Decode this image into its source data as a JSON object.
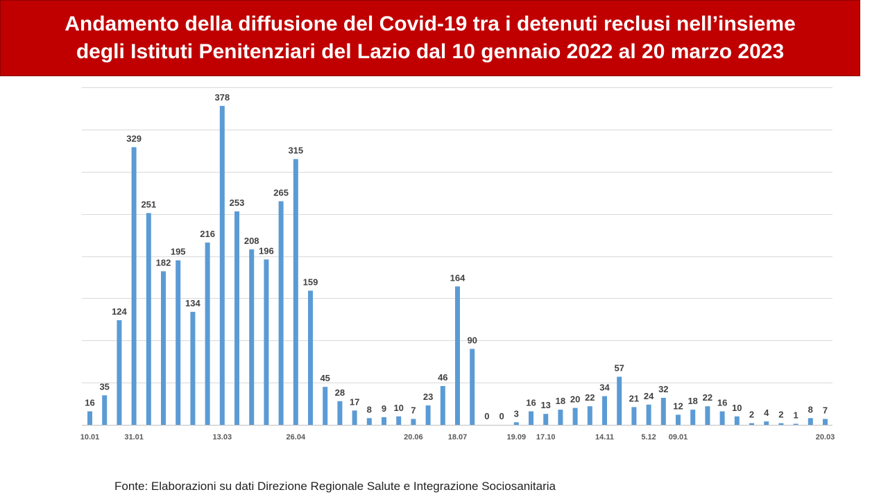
{
  "title": {
    "line1": "Andamento della diffusione del Covid-19 tra i detenuti reclusi nell’insieme",
    "line2": "degli Istituti Penitenziari del Lazio dal 10 gennaio 2022 al 20 marzo 2023"
  },
  "source": "Fonte: Elaborazioni su dati Direzione Regionale Salute e Integrazione Sociosanitaria",
  "colors": {
    "banner": "#c00000",
    "bar": "#5b9bd5",
    "grid": "#d9d9d9",
    "label": "#404040"
  },
  "chart_data": {
    "type": "bar",
    "values": [
      16,
      35,
      124,
      329,
      251,
      182,
      195,
      134,
      216,
      378,
      253,
      208,
      196,
      265,
      315,
      159,
      45,
      28,
      17,
      8,
      9,
      10,
      7,
      23,
      46,
      164,
      90,
      0,
      0,
      3,
      16,
      13,
      18,
      20,
      22,
      34,
      57,
      21,
      24,
      32,
      12,
      18,
      22,
      16,
      10,
      2,
      4,
      2,
      1,
      8,
      7
    ],
    "tick_labels": [
      {
        "index": 0,
        "label": "10.01"
      },
      {
        "index": 3,
        "label": "31.01"
      },
      {
        "index": 9,
        "label": "13.03"
      },
      {
        "index": 14,
        "label": "26.04"
      },
      {
        "index": 22,
        "label": "20.06"
      },
      {
        "index": 25,
        "label": "18.07"
      },
      {
        "index": 29,
        "label": "19.09"
      },
      {
        "index": 31,
        "label": "17.10"
      },
      {
        "index": 35,
        "label": "14.11"
      },
      {
        "index": 38,
        "label": "5.12"
      },
      {
        "index": 40,
        "label": "09.01"
      },
      {
        "index": 50,
        "label": "20.03"
      }
    ],
    "ylim": [
      0,
      400
    ],
    "grid": true,
    "legend": "none"
  }
}
